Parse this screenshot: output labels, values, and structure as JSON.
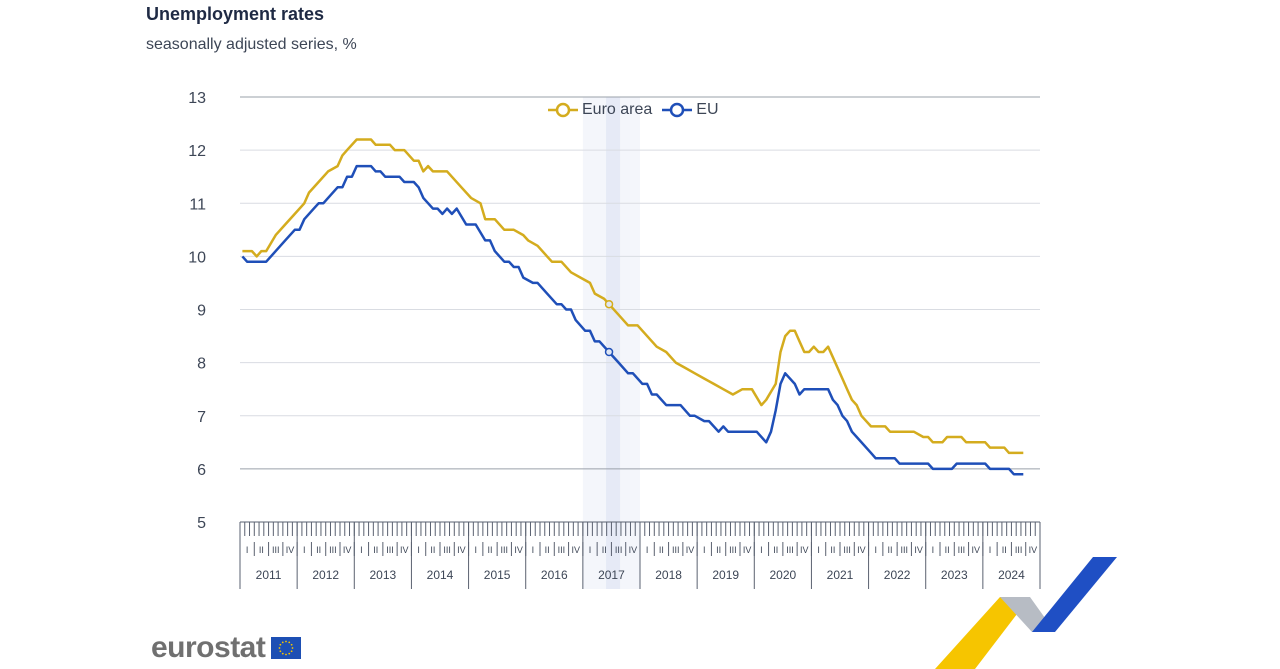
{
  "header": {
    "title": "Unemployment rates",
    "subtitle": "seasonally adjusted series, %"
  },
  "logo": {
    "text": "eurostat",
    "icon": "eu-flag-icon"
  },
  "colors": {
    "euro_area": "#d4ac1e",
    "eu": "#1f4fb8",
    "grid": "#d9dce2",
    "highlight": "#dfe6f3"
  },
  "chart_data": {
    "type": "line",
    "title": "Unemployment rates",
    "subtitle": "seasonally adjusted series, %",
    "ylabel": "",
    "xlabel": "",
    "ylim": [
      5,
      13
    ],
    "yticks": [
      5,
      6,
      7,
      8,
      9,
      10,
      11,
      12,
      13
    ],
    "grid": true,
    "legend_position": "top-center",
    "x_start": "2011-01",
    "x_end": "2024-12",
    "frequency": "monthly",
    "years": [
      "2011",
      "2012",
      "2013",
      "2014",
      "2015",
      "2016",
      "2017",
      "2018",
      "2019",
      "2020",
      "2021",
      "2022",
      "2023",
      "2024"
    ],
    "quarters": [
      "I",
      "II",
      "III",
      "IV"
    ],
    "highlight": {
      "band": [
        "2017-01",
        "2017-12"
      ],
      "marker": "2017-06"
    },
    "series": [
      {
        "name": "Euro area",
        "points": [
          [
            "2011-01",
            10.1
          ],
          [
            "2011-03",
            10.1
          ],
          [
            "2011-04",
            10.0
          ],
          [
            "2011-05",
            10.1
          ],
          [
            "2011-06",
            10.1
          ],
          [
            "2011-08",
            10.4
          ],
          [
            "2011-10",
            10.6
          ],
          [
            "2011-12",
            10.8
          ],
          [
            "2012-02",
            11.0
          ],
          [
            "2012-03",
            11.2
          ],
          [
            "2012-05",
            11.4
          ],
          [
            "2012-07",
            11.6
          ],
          [
            "2012-09",
            11.7
          ],
          [
            "2012-10",
            11.9
          ],
          [
            "2012-11",
            12.0
          ],
          [
            "2013-01",
            12.2
          ],
          [
            "2013-04",
            12.2
          ],
          [
            "2013-05",
            12.1
          ],
          [
            "2013-08",
            12.1
          ],
          [
            "2013-09",
            12.0
          ],
          [
            "2013-11",
            12.0
          ],
          [
            "2014-01",
            11.8
          ],
          [
            "2014-02",
            11.8
          ],
          [
            "2014-03",
            11.6
          ],
          [
            "2014-04",
            11.7
          ],
          [
            "2014-05",
            11.6
          ],
          [
            "2014-08",
            11.6
          ],
          [
            "2014-11",
            11.3
          ],
          [
            "2015-01",
            11.1
          ],
          [
            "2015-03",
            11.0
          ],
          [
            "2015-04",
            10.7
          ],
          [
            "2015-06",
            10.7
          ],
          [
            "2015-08",
            10.5
          ],
          [
            "2015-10",
            10.5
          ],
          [
            "2015-12",
            10.4
          ],
          [
            "2016-01",
            10.3
          ],
          [
            "2016-03",
            10.2
          ],
          [
            "2016-05",
            10.0
          ],
          [
            "2016-06",
            9.9
          ],
          [
            "2016-08",
            9.9
          ],
          [
            "2016-10",
            9.7
          ],
          [
            "2016-12",
            9.6
          ],
          [
            "2017-02",
            9.5
          ],
          [
            "2017-03",
            9.3
          ],
          [
            "2017-05",
            9.2
          ],
          [
            "2017-06",
            9.1
          ],
          [
            "2017-08",
            8.9
          ],
          [
            "2017-10",
            8.7
          ],
          [
            "2017-12",
            8.7
          ],
          [
            "2018-04",
            8.3
          ],
          [
            "2018-06",
            8.2
          ],
          [
            "2018-08",
            8.0
          ],
          [
            "2018-10",
            7.9
          ],
          [
            "2018-12",
            7.8
          ],
          [
            "2019-02",
            7.7
          ],
          [
            "2019-04",
            7.6
          ],
          [
            "2019-06",
            7.5
          ],
          [
            "2019-08",
            7.4
          ],
          [
            "2019-10",
            7.5
          ],
          [
            "2019-12",
            7.5
          ],
          [
            "2020-02",
            7.2
          ],
          [
            "2020-03",
            7.3
          ],
          [
            "2020-05",
            7.6
          ],
          [
            "2020-06",
            8.2
          ],
          [
            "2020-07",
            8.5
          ],
          [
            "2020-08",
            8.6
          ],
          [
            "2020-09",
            8.6
          ],
          [
            "2020-10",
            8.4
          ],
          [
            "2020-11",
            8.2
          ],
          [
            "2020-12",
            8.2
          ],
          [
            "2021-01",
            8.3
          ],
          [
            "2021-02",
            8.2
          ],
          [
            "2021-03",
            8.2
          ],
          [
            "2021-04",
            8.3
          ],
          [
            "2021-05",
            8.1
          ],
          [
            "2021-07",
            7.7
          ],
          [
            "2021-08",
            7.5
          ],
          [
            "2021-09",
            7.3
          ],
          [
            "2021-10",
            7.2
          ],
          [
            "2021-11",
            7.0
          ],
          [
            "2022-01",
            6.8
          ],
          [
            "2022-04",
            6.8
          ],
          [
            "2022-05",
            6.7
          ],
          [
            "2022-10",
            6.7
          ],
          [
            "2022-12",
            6.6
          ],
          [
            "2023-01",
            6.6
          ],
          [
            "2023-02",
            6.5
          ],
          [
            "2023-04",
            6.5
          ],
          [
            "2023-05",
            6.6
          ],
          [
            "2023-08",
            6.6
          ],
          [
            "2023-09",
            6.5
          ],
          [
            "2023-12",
            6.5
          ],
          [
            "2024-01",
            6.5
          ],
          [
            "2024-02",
            6.4
          ],
          [
            "2024-05",
            6.4
          ],
          [
            "2024-06",
            6.3
          ],
          [
            "2024-09",
            6.3
          ]
        ]
      },
      {
        "name": "EU",
        "points": [
          [
            "2011-01",
            10.0
          ],
          [
            "2011-02",
            9.9
          ],
          [
            "2011-06",
            9.9
          ],
          [
            "2011-08",
            10.1
          ],
          [
            "2011-10",
            10.3
          ],
          [
            "2011-12",
            10.5
          ],
          [
            "2012-01",
            10.5
          ],
          [
            "2012-02",
            10.7
          ],
          [
            "2012-04",
            10.9
          ],
          [
            "2012-05",
            11.0
          ],
          [
            "2012-06",
            11.0
          ],
          [
            "2012-08",
            11.2
          ],
          [
            "2012-09",
            11.3
          ],
          [
            "2012-10",
            11.3
          ],
          [
            "2012-11",
            11.5
          ],
          [
            "2012-12",
            11.5
          ],
          [
            "2013-01",
            11.7
          ],
          [
            "2013-04",
            11.7
          ],
          [
            "2013-05",
            11.6
          ],
          [
            "2013-06",
            11.6
          ],
          [
            "2013-07",
            11.5
          ],
          [
            "2013-10",
            11.5
          ],
          [
            "2013-11",
            11.4
          ],
          [
            "2014-01",
            11.4
          ],
          [
            "2014-02",
            11.3
          ],
          [
            "2014-03",
            11.1
          ],
          [
            "2014-05",
            10.9
          ],
          [
            "2014-06",
            10.9
          ],
          [
            "2014-07",
            10.8
          ],
          [
            "2014-08",
            10.9
          ],
          [
            "2014-09",
            10.8
          ],
          [
            "2014-10",
            10.9
          ],
          [
            "2014-12",
            10.6
          ],
          [
            "2015-02",
            10.6
          ],
          [
            "2015-04",
            10.3
          ],
          [
            "2015-05",
            10.3
          ],
          [
            "2015-06",
            10.1
          ],
          [
            "2015-08",
            9.9
          ],
          [
            "2015-09",
            9.9
          ],
          [
            "2015-10",
            9.8
          ],
          [
            "2015-11",
            9.8
          ],
          [
            "2015-12",
            9.6
          ],
          [
            "2016-02",
            9.5
          ],
          [
            "2016-03",
            9.5
          ],
          [
            "2016-05",
            9.3
          ],
          [
            "2016-07",
            9.1
          ],
          [
            "2016-08",
            9.1
          ],
          [
            "2016-09",
            9.0
          ],
          [
            "2016-10",
            9.0
          ],
          [
            "2016-11",
            8.8
          ],
          [
            "2017-01",
            8.6
          ],
          [
            "2017-02",
            8.6
          ],
          [
            "2017-03",
            8.4
          ],
          [
            "2017-04",
            8.4
          ],
          [
            "2017-06",
            8.2
          ],
          [
            "2017-08",
            8.0
          ],
          [
            "2017-10",
            7.8
          ],
          [
            "2017-11",
            7.8
          ],
          [
            "2018-01",
            7.6
          ],
          [
            "2018-02",
            7.6
          ],
          [
            "2018-03",
            7.4
          ],
          [
            "2018-04",
            7.4
          ],
          [
            "2018-06",
            7.2
          ],
          [
            "2018-09",
            7.2
          ],
          [
            "2018-11",
            7.0
          ],
          [
            "2018-12",
            7.0
          ],
          [
            "2019-02",
            6.9
          ],
          [
            "2019-03",
            6.9
          ],
          [
            "2019-05",
            6.7
          ],
          [
            "2019-06",
            6.8
          ],
          [
            "2019-07",
            6.7
          ],
          [
            "2019-12",
            6.7
          ],
          [
            "2020-01",
            6.7
          ],
          [
            "2020-03",
            6.5
          ],
          [
            "2020-04",
            6.7
          ],
          [
            "2020-05",
            7.1
          ],
          [
            "2020-06",
            7.6
          ],
          [
            "2020-07",
            7.8
          ],
          [
            "2020-09",
            7.6
          ],
          [
            "2020-10",
            7.4
          ],
          [
            "2020-11",
            7.5
          ],
          [
            "2021-04",
            7.5
          ],
          [
            "2021-05",
            7.3
          ],
          [
            "2021-06",
            7.2
          ],
          [
            "2021-07",
            7.0
          ],
          [
            "2021-08",
            6.9
          ],
          [
            "2021-09",
            6.7
          ],
          [
            "2021-10",
            6.6
          ],
          [
            "2022-01",
            6.3
          ],
          [
            "2022-02",
            6.2
          ],
          [
            "2022-06",
            6.2
          ],
          [
            "2022-07",
            6.1
          ],
          [
            "2022-12",
            6.1
          ],
          [
            "2023-01",
            6.1
          ],
          [
            "2023-02",
            6.0
          ],
          [
            "2023-06",
            6.0
          ],
          [
            "2023-07",
            6.1
          ],
          [
            "2023-12",
            6.1
          ],
          [
            "2024-01",
            6.1
          ],
          [
            "2024-02",
            6.0
          ],
          [
            "2024-06",
            6.0
          ],
          [
            "2024-07",
            5.9
          ],
          [
            "2024-09",
            5.9
          ]
        ]
      }
    ]
  }
}
